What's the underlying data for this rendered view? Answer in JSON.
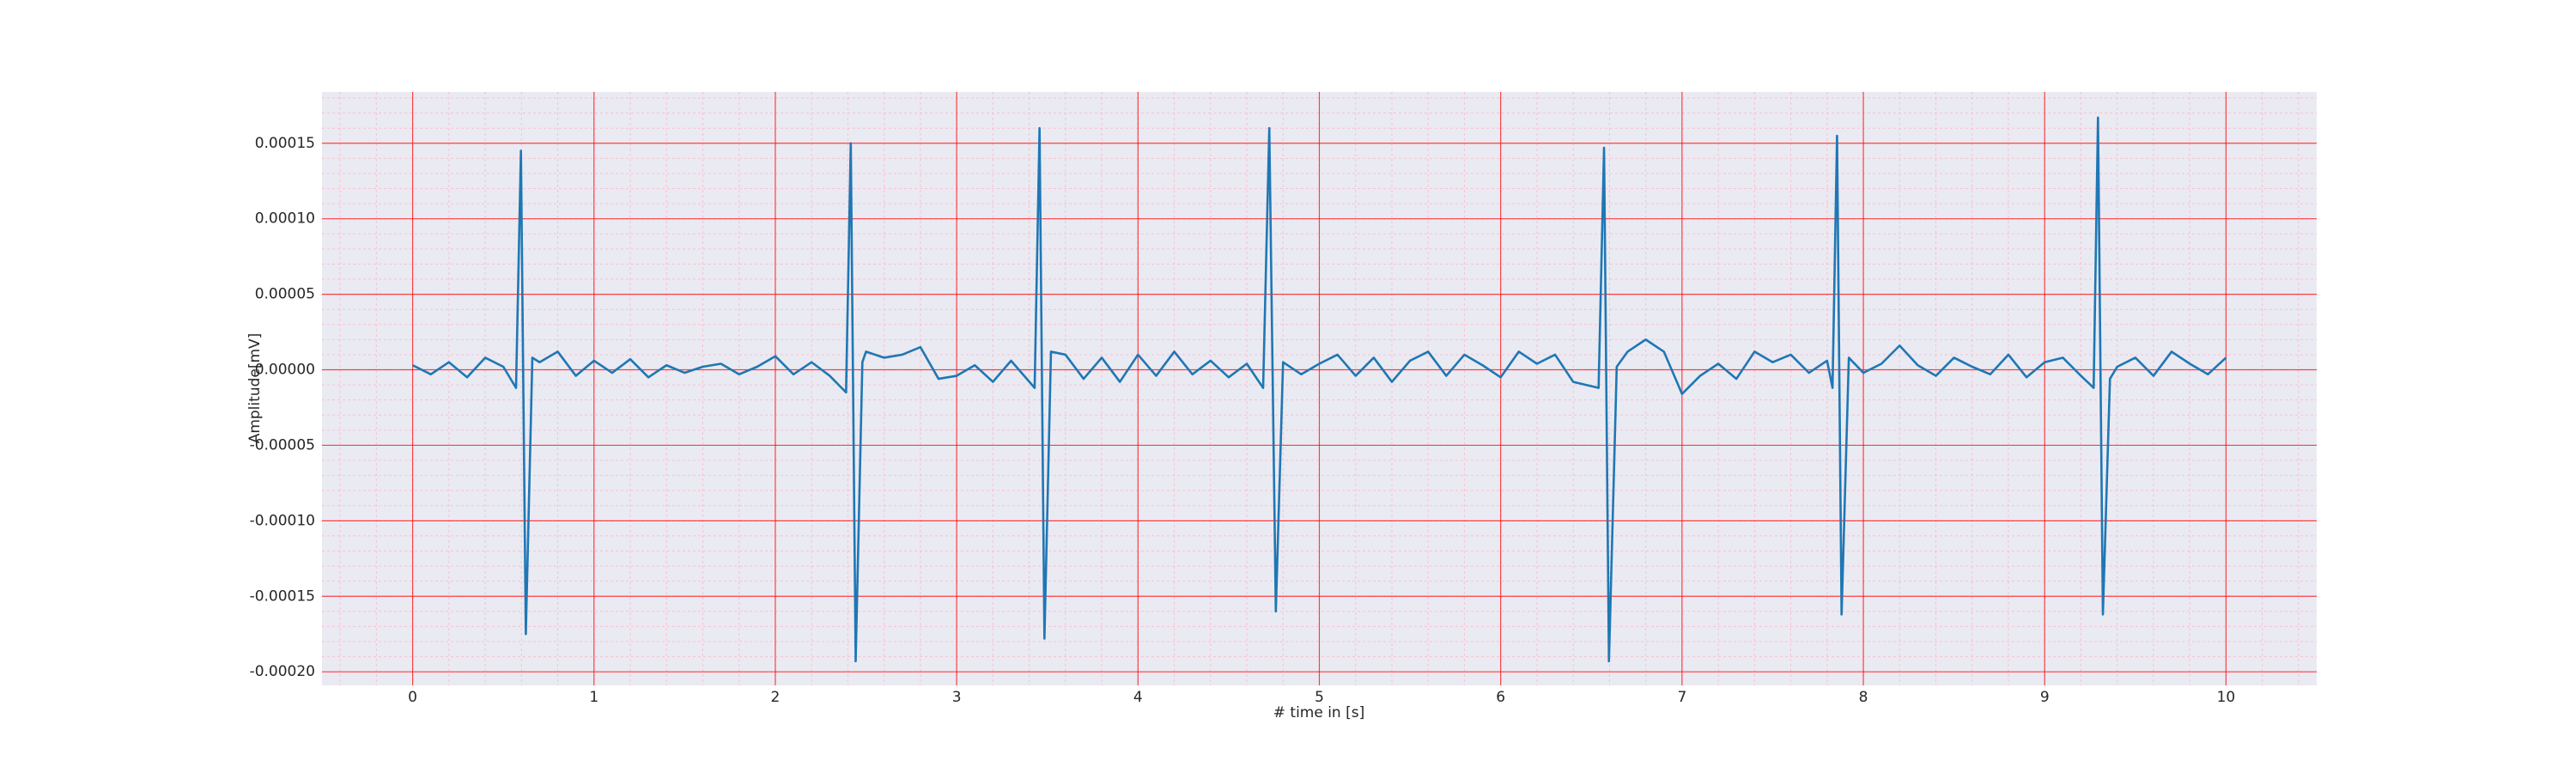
{
  "chart_data": {
    "type": "line",
    "xlabel": "# time in [s]",
    "ylabel": "Amplitude[mV]",
    "color": "#1f77b4",
    "background": "#eaeaf2",
    "grid": true,
    "grid_color": "#ff0000",
    "minor_grid": true,
    "minor_grid_color": "#ffb6c8",
    "minor_grid_divisions": 5,
    "xlim": [
      -0.5,
      10.5
    ],
    "ylim": [
      -0.000209,
      0.000184
    ],
    "xticks": [
      0,
      1,
      2,
      3,
      4,
      5,
      6,
      7,
      8,
      9,
      10
    ],
    "yticks": [
      {
        "value": -0.0002,
        "label": "-0.00020"
      },
      -0.00015,
      {
        "value": -0.0001,
        "label": "-0.00010"
      },
      -5e-05,
      {
        "value": 0,
        "label": "0.00000"
      },
      {
        "value": 5e-05,
        "label": "0.00005"
      },
      {
        "value": 0.0001,
        "label": "0.00010"
      },
      0.00015
    ],
    "x": [
      0,
      0.1,
      0.2,
      0.3,
      0.4,
      0.5,
      0.57,
      0.597,
      0.624,
      0.66,
      0.7,
      0.8,
      0.9,
      1.0,
      1.1,
      1.2,
      1.3,
      1.4,
      1.5,
      1.6,
      1.7,
      1.8,
      1.9,
      2.0,
      2.1,
      2.2,
      2.3,
      2.39,
      2.416,
      2.443,
      2.48,
      2.5,
      2.6,
      2.7,
      2.8,
      2.9,
      3.0,
      3.1,
      3.2,
      3.3,
      3.43,
      3.457,
      3.484,
      3.52,
      3.6,
      3.7,
      3.8,
      3.9,
      4.0,
      4.1,
      4.2,
      4.3,
      4.4,
      4.5,
      4.6,
      4.69,
      4.724,
      4.76,
      4.8,
      4.9,
      5.0,
      5.1,
      5.2,
      5.3,
      5.4,
      5.5,
      5.6,
      5.7,
      5.8,
      5.9,
      6.0,
      6.1,
      6.2,
      6.3,
      6.4,
      6.54,
      6.57,
      6.597,
      6.64,
      6.7,
      6.8,
      6.9,
      7.0,
      7.1,
      7.2,
      7.3,
      7.4,
      7.5,
      7.6,
      7.7,
      7.8,
      7.83,
      7.855,
      7.88,
      7.92,
      8.0,
      8.1,
      8.2,
      8.3,
      8.4,
      8.5,
      8.6,
      8.7,
      8.8,
      8.9,
      9.0,
      9.1,
      9.2,
      9.27,
      9.294,
      9.321,
      9.36,
      9.4,
      9.5,
      9.6,
      9.7,
      9.8,
      9.9,
      10.0
    ],
    "values": [
      3e-06,
      -3e-06,
      5e-06,
      -5e-06,
      8e-06,
      2e-06,
      -1.2e-05,
      0.000145,
      -0.000175,
      8e-06,
      5e-06,
      1.2e-05,
      -4e-06,
      6e-06,
      -2e-06,
      7e-06,
      -5e-06,
      3e-06,
      -2e-06,
      2e-06,
      4e-06,
      -3e-06,
      2e-06,
      9e-06,
      -3e-06,
      5e-06,
      -4e-06,
      -1.5e-05,
      0.00015,
      -0.000193,
      5e-06,
      1.2e-05,
      8e-06,
      1e-05,
      1.5e-05,
      -6e-06,
      -4e-06,
      3e-06,
      -8e-06,
      6e-06,
      -1.2e-05,
      0.00016,
      -0.000178,
      1.2e-05,
      1e-05,
      -6e-06,
      8e-06,
      -8e-06,
      1e-05,
      -4e-06,
      1.2e-05,
      -3e-06,
      6e-06,
      -5e-06,
      4e-06,
      -1.2e-05,
      0.00016,
      -0.00016,
      5e-06,
      -3e-06,
      4e-06,
      1e-05,
      -4e-06,
      8e-06,
      -8e-06,
      6e-06,
      1.2e-05,
      -4e-06,
      1e-05,
      3e-06,
      -5e-06,
      1.2e-05,
      4e-06,
      1e-05,
      -8e-06,
      -1.2e-05,
      0.000147,
      -0.000193,
      2e-06,
      1.2e-05,
      2e-05,
      1.2e-05,
      -1.6e-05,
      -4e-06,
      4e-06,
      -6e-06,
      1.2e-05,
      5e-06,
      1e-05,
      -2e-06,
      6e-06,
      -1.2e-05,
      0.000155,
      -0.000162,
      8e-06,
      -2e-06,
      4e-06,
      1.6e-05,
      3e-06,
      -4e-06,
      8e-06,
      2e-06,
      -3e-06,
      1e-05,
      -5e-06,
      5e-06,
      8e-06,
      -4e-06,
      -1.2e-05,
      0.000167,
      -0.000162,
      -6e-06,
      2e-06,
      8e-06,
      -4e-06,
      1.2e-05,
      4e-06,
      -3e-06,
      8e-06
    ]
  }
}
